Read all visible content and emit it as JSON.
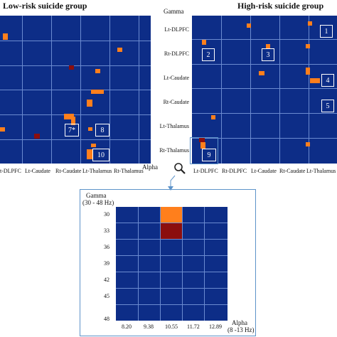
{
  "titles": {
    "low": "Low-risk suicide group",
    "high": "High-risk suicide group"
  },
  "left_panel": {
    "x_labels": [
      "t-DLPFC",
      "Lt-Caudate",
      "Rt-Caudate",
      "Lt-Thalamus",
      "Rt-Thalamus"
    ],
    "axis_label": "Alpha",
    "boxes": [
      "7*",
      "8",
      "10"
    ]
  },
  "right_panel": {
    "corner_label": "Gamma",
    "row_labels": [
      "Lt-DLPFC",
      "Rt-DLPFC",
      "Lt-Caudate",
      "Rt-Caudate",
      "Lt-Thalamus",
      "Rt-Thalamus"
    ],
    "x_labels": [
      "Lt-DLPFC",
      "Rt-DLPFC",
      "Lt-Caudate",
      "Rt-Caudate",
      "Lt-Thalamus"
    ],
    "boxes": [
      "1",
      "2",
      "3",
      "4",
      "5",
      "9"
    ]
  },
  "zoom": {
    "y_title": "Gamma",
    "y_range": "(30 - 48 Hz)",
    "y_ticks": [
      "30",
      "33",
      "36",
      "39",
      "42",
      "45",
      "48"
    ],
    "x_title": "Alpha",
    "x_range": "(8 -13 Hz)",
    "x_ticks": [
      "8.20",
      "9.38",
      "10.55",
      "11.72",
      "12.89"
    ]
  },
  "colors": {
    "background": "#0d2d87",
    "grid": "#6b8bd0",
    "orange": "#ff7f1c",
    "dark_red": "#8b0e0e"
  },
  "icons": {
    "magnifier": "magnifier-icon"
  }
}
